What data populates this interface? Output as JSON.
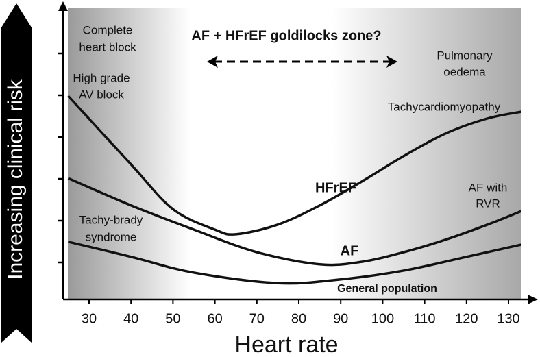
{
  "chart_data": {
    "type": "line",
    "title": "AF + HFrEF goldilocks zone?",
    "x_label": "Heart rate",
    "y_label": "Increasing clinical risk",
    "xlim": [
      25,
      133
    ],
    "ylim": [
      0,
      7
    ],
    "xticks": [
      30,
      40,
      50,
      60,
      70,
      80,
      90,
      100,
      110,
      120,
      130
    ],
    "series": [
      {
        "name": "HFrEF",
        "color": "#111111",
        "x": [
          25,
          40,
          50,
          60,
          65,
          75,
          85,
          95,
          105,
          115,
          125,
          133
        ],
        "values": [
          4.87,
          3.23,
          2.16,
          1.67,
          1.56,
          1.79,
          2.25,
          2.82,
          3.43,
          3.97,
          4.33,
          4.49
        ]
      },
      {
        "name": "AF",
        "color": "#111111",
        "x": [
          25,
          40,
          55,
          70,
          85,
          95,
          105,
          115,
          125,
          133
        ],
        "values": [
          2.9,
          2.25,
          1.67,
          1.13,
          0.84,
          0.9,
          1.13,
          1.43,
          1.79,
          2.11
        ]
      },
      {
        "name": "General population",
        "color": "#111111",
        "x": [
          25,
          40,
          55,
          75,
          90,
          105,
          120,
          133
        ],
        "values": [
          1.38,
          1.02,
          0.64,
          0.39,
          0.48,
          0.69,
          1.02,
          1.31
        ]
      }
    ],
    "annotations": [
      "Complete",
      "heart block",
      "High grade",
      "AV block",
      "Tachy-brady",
      "syndrome",
      "Pulmonary",
      "oedema",
      "Tachycardiomyopathy",
      "AF with",
      "RVR"
    ]
  }
}
